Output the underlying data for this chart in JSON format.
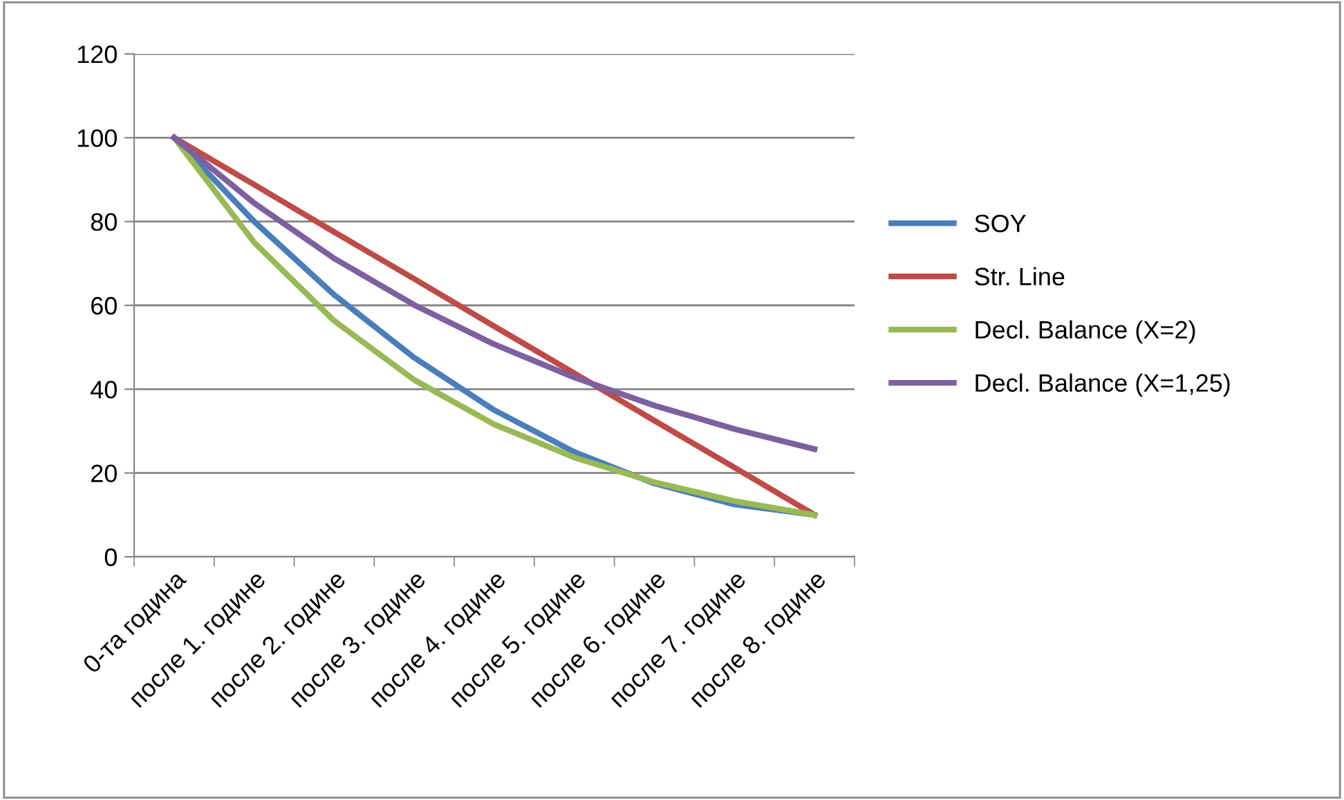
{
  "chart_data": {
    "type": "line",
    "categories": [
      "0-та година",
      "после 1. године",
      "после 2. године",
      "после 3. године",
      "после 4. године",
      "после 5. године",
      "после 6. године",
      "после 7. године",
      "после 8. године"
    ],
    "series": [
      {
        "name": "SOY",
        "color": "#4a7ebb",
        "values": [
          100,
          80,
          62.5,
          47.5,
          35,
          25,
          17.5,
          12.5,
          10
        ]
      },
      {
        "name": "Str. Line",
        "color": "#be4b48",
        "values": [
          100,
          88.8,
          77.5,
          66.3,
          55,
          43.8,
          32.5,
          21.3,
          10
        ]
      },
      {
        "name": "Decl. Balance (X=2)",
        "color": "#98b954",
        "values": [
          100,
          75,
          56.3,
          42.2,
          31.6,
          23.7,
          17.8,
          13.3,
          10
        ]
      },
      {
        "name": "Decl. Balance (X=1,25)",
        "color": "#7d60a0",
        "values": [
          100,
          84.4,
          71.2,
          60.1,
          50.7,
          42.8,
          36.1,
          30.5,
          25.7
        ]
      }
    ],
    "ylim": [
      0,
      120
    ],
    "yticks": [
      0,
      20,
      40,
      60,
      80,
      100,
      120
    ],
    "grid": "y",
    "legend": "right",
    "marker": "none",
    "line_style": "solid"
  }
}
